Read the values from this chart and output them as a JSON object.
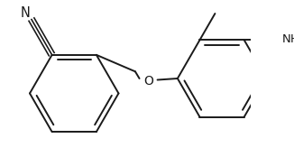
{
  "bg_color": "#ffffff",
  "line_color": "#1a1a1a",
  "text_color": "#1a1a1a",
  "bond_width": 1.4,
  "font_size": 9.5,
  "figsize": [
    3.26,
    1.84
  ],
  "dpi": 100,
  "r": 0.32
}
